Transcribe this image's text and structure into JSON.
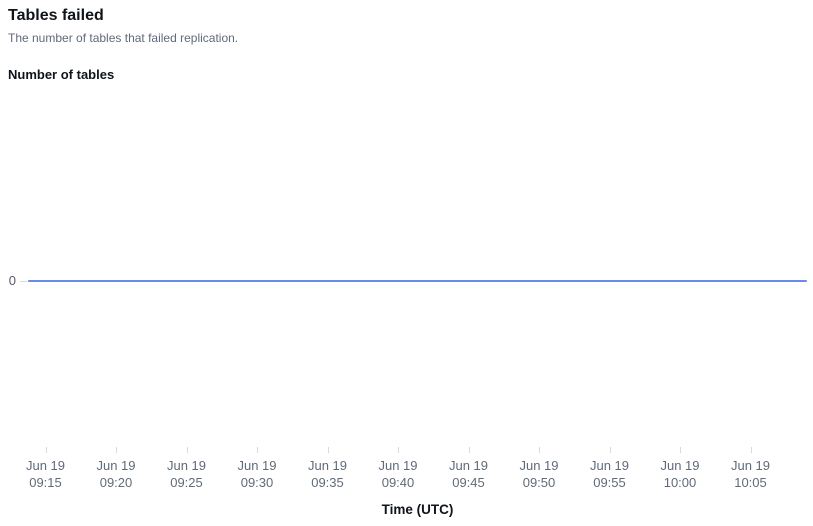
{
  "header": {
    "title": "Tables failed",
    "subtitle": "The number of tables that failed replication."
  },
  "chart": {
    "y_axis_title": "Number of tables",
    "x_axis_title": "Time (UTC)"
  },
  "colors": {
    "series_line": "#688ae8",
    "tick_mark": "#d5dbdb",
    "axis_text": "#5f6b7a",
    "heading_text": "#0f141a"
  },
  "chart_data": {
    "type": "line",
    "title": "Tables failed",
    "xlabel": "Time (UTC)",
    "ylabel": "Number of tables",
    "x_date": "Jun 19",
    "x": [
      "09:15",
      "09:20",
      "09:25",
      "09:30",
      "09:35",
      "09:40",
      "09:45",
      "09:50",
      "09:55",
      "10:00",
      "10:05"
    ],
    "series": [
      {
        "name": "Tables failed",
        "values": [
          0,
          0,
          0,
          0,
          0,
          0,
          0,
          0,
          0,
          0,
          0
        ]
      }
    ],
    "y_ticks": [
      0
    ],
    "ylim_rendered_value": 0,
    "grid": false,
    "legend_position": "none"
  }
}
